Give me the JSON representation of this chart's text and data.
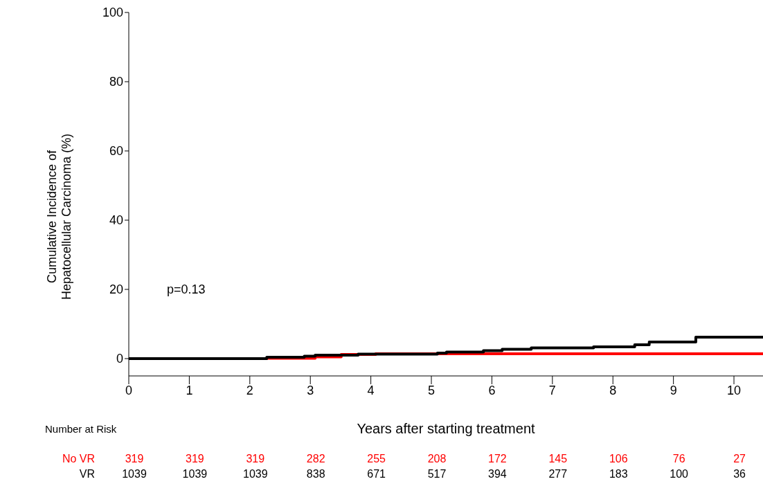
{
  "chart_data": {
    "type": "step",
    "xlabel": "Years after starting treatment",
    "ylabel": "Cumulative Incidence of\nHepatocellular Carcinoma (%)",
    "xlim": [
      0,
      10.48
    ],
    "xticks": [
      0,
      1,
      2,
      3,
      4,
      5,
      6,
      7,
      8,
      9,
      10
    ],
    "ylim": [
      -5,
      100
    ],
    "yticks": [
      0,
      20,
      40,
      60,
      80,
      100
    ],
    "marker": "none",
    "line_style": "solid",
    "series": [
      {
        "name": "No VR",
        "color": "#ff0000",
        "x": [
          0,
          2.28,
          3.08,
          3.51,
          4.08,
          10.48
        ],
        "values": [
          0,
          0.1,
          0.5,
          1.2,
          1.4,
          1.4
        ]
      },
      {
        "name": "VR",
        "color": "#000000",
        "x": [
          0,
          2.28,
          2.9,
          3.08,
          3.79,
          5.1,
          5.25,
          5.86,
          6.17,
          6.65,
          7.68,
          8.36,
          8.6,
          9.37,
          10.48
        ],
        "values": [
          0,
          0.4,
          0.7,
          1.0,
          1.3,
          1.6,
          1.9,
          2.3,
          2.7,
          3.1,
          3.4,
          4.0,
          4.8,
          6.2,
          6.2
        ]
      }
    ],
    "annotations": [
      "p=0.13",
      "Number at Risk",
      "319",
      "319",
      "319",
      "282",
      "255",
      "208",
      "172",
      "145",
      "106",
      "76",
      "27",
      "1039",
      "1039",
      "1039",
      "838",
      "671",
      "517",
      "394",
      "277",
      "183",
      "100",
      "36"
    ]
  }
}
